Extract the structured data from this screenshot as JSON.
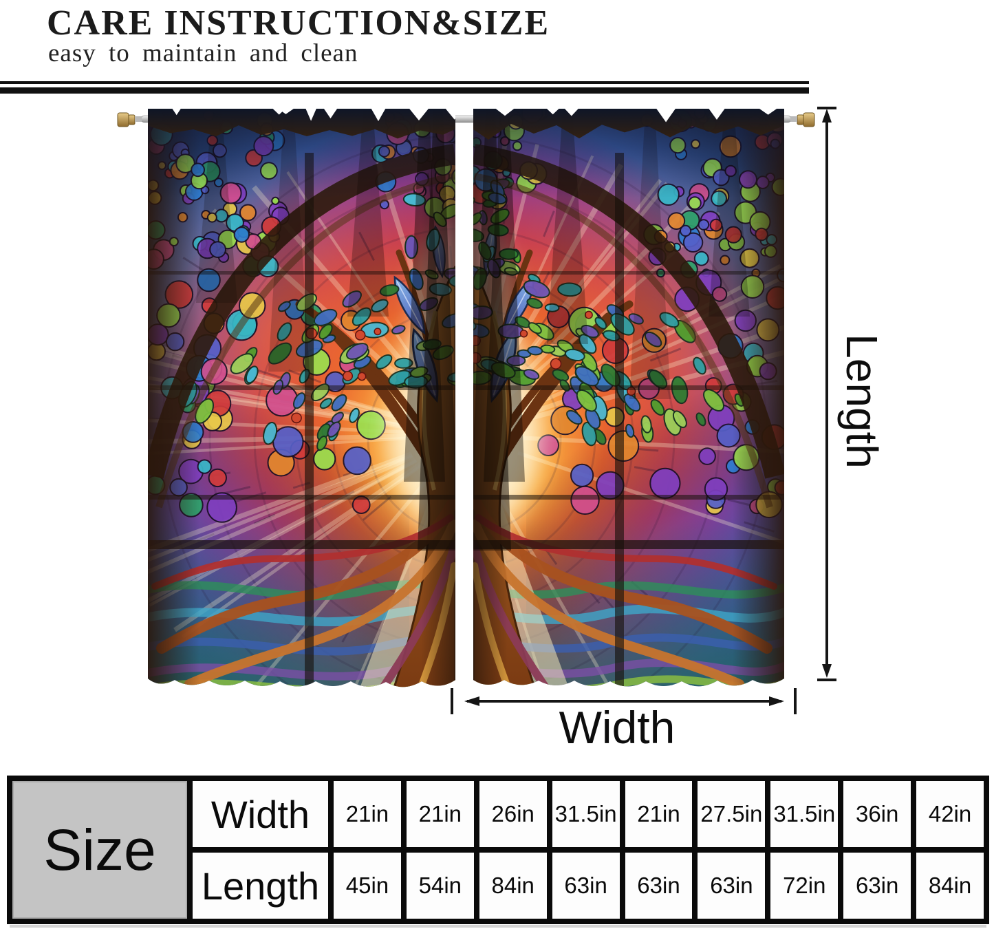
{
  "header": {
    "title": "CARE INSTRUCTION&SIZE",
    "subtitle": "easy to maintain and clean"
  },
  "dimensions": {
    "length_label": "Length",
    "width_label": "Width"
  },
  "size_table": {
    "corner_label": "Size",
    "rows": [
      {
        "label": "Width",
        "values": [
          "21in",
          "21in",
          "26in",
          "31.5in",
          "21in",
          "27.5in",
          "31.5in",
          "36in",
          "42in"
        ]
      },
      {
        "label": "Length",
        "values": [
          "45in",
          "54in",
          "84in",
          "63in",
          "63in",
          "63in",
          "72in",
          "63in",
          "84in"
        ]
      }
    ]
  },
  "colors": {
    "accent_black": "#151515",
    "table_corner_bg": "#c4c4c4",
    "rod_silver": "#d9d9d9",
    "finial_gold": "#c9a24b",
    "ruffle_dark": "#0e1526",
    "glass_palette": [
      "#2e7dd1",
      "#7f3fbf",
      "#d13b3b",
      "#2ea36b",
      "#e2872f",
      "#d14f8e",
      "#38b8c9",
      "#e8c84a",
      "#5560c9",
      "#9adf4f"
    ],
    "leaf_palette": [
      "#4f9e2e",
      "#7ec13f",
      "#2f7d33",
      "#9ccf5a",
      "#2e9fa3",
      "#3f6fc1",
      "#6f55b5",
      "#49b8d1"
    ],
    "root_palette": [
      "#a8521f",
      "#c8742e",
      "#8c3b57",
      "#b03030",
      "#d99a3e"
    ]
  }
}
